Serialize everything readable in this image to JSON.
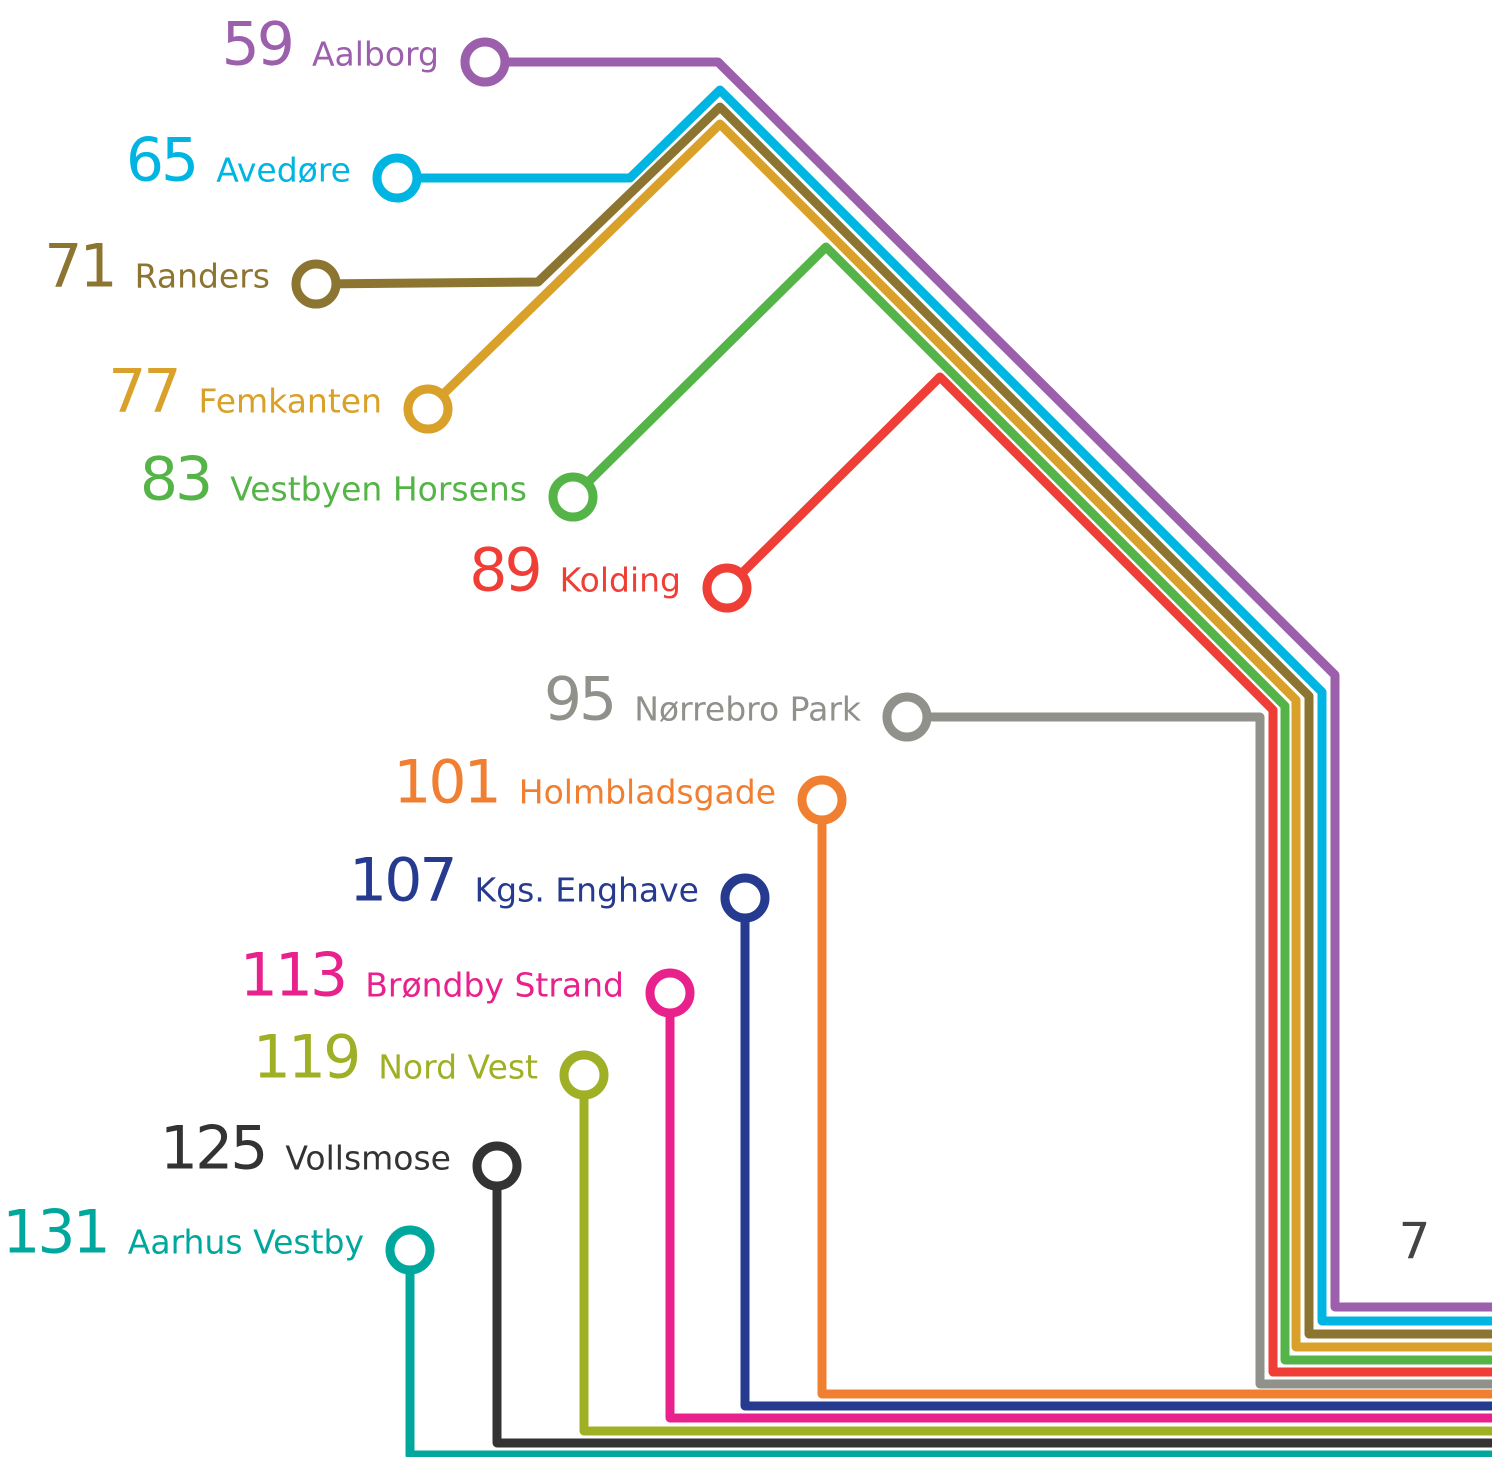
{
  "lines": [
    {
      "number": "59",
      "name": "Aalborg",
      "color": "#9b5fac"
    },
    {
      "number": "65",
      "name": "Avedøre",
      "color": "#00b5e2"
    },
    {
      "number": "71",
      "name": "Randers",
      "color": "#8c7530"
    },
    {
      "number": "77",
      "name": "Femkanten",
      "color": "#d9a12a"
    },
    {
      "number": "83",
      "name": "Vestbyen Horsens",
      "color": "#55b447"
    },
    {
      "number": "89",
      "name": "Kolding",
      "color": "#ef3e36"
    },
    {
      "number": "95",
      "name": "Nørrebro Park",
      "color": "#8f918a"
    },
    {
      "number": "101",
      "name": "Holmbladsgade",
      "color": "#f07f32"
    },
    {
      "number": "107",
      "name": "Kgs. Enghave",
      "color": "#263a8f"
    },
    {
      "number": "113",
      "name": "Brøndby Strand",
      "color": "#e8218c"
    },
    {
      "number": "119",
      "name": "Nord Vest",
      "color": "#a0b026"
    },
    {
      "number": "125",
      "name": "Vollsmose",
      "color": "#333333"
    },
    {
      "number": "131",
      "name": "Aarhus Vestby",
      "color": "#00a79d"
    }
  ],
  "platform": "7"
}
